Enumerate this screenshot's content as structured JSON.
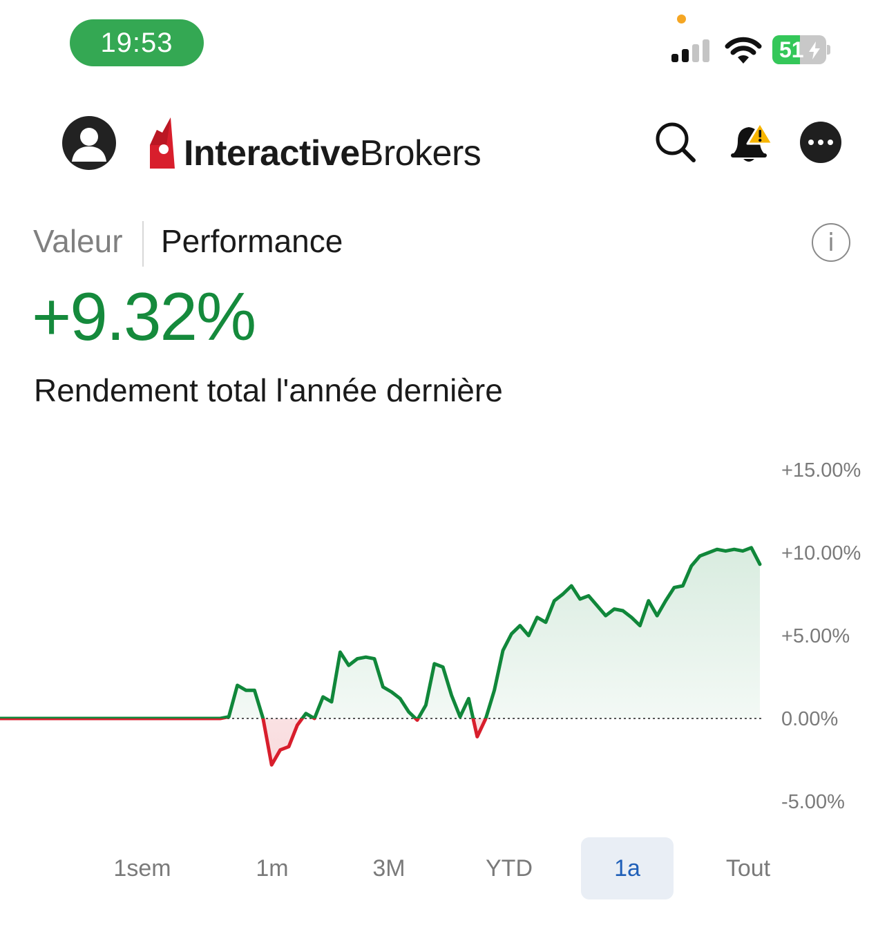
{
  "status_bar": {
    "time": "19:53",
    "battery_text": "51",
    "battery_level": 0.51,
    "colors": {
      "time_pill": "#34a853",
      "battery": "#34c759",
      "privacy_dot": "#f5a623"
    }
  },
  "header": {
    "logo_bold": "Interactive",
    "logo_light": "Brokers",
    "icons": [
      "avatar-icon",
      "search-icon",
      "bell-alert-icon",
      "more-icon"
    ]
  },
  "tabs": {
    "valeur": "Valeur",
    "performance": "Performance",
    "active": "Performance",
    "info": "i"
  },
  "summary": {
    "value": "+9.32%",
    "caption": "Rendement total l'année dernière",
    "color": "#158a3c"
  },
  "chart_data": {
    "type": "line",
    "title": "",
    "ylabel": "",
    "xlabel": "",
    "y_tick_labels": [
      "+15.00%",
      "+10.00%",
      "+5.00%",
      "0.00%",
      "-5.00%"
    ],
    "y_ticks": [
      15,
      10,
      5,
      0,
      -5
    ],
    "ylim": [
      -5,
      15
    ],
    "baseline": 0,
    "colors": {
      "positive": "#10873a",
      "negative": "#d81e2c"
    },
    "series": [
      {
        "values": [
          0,
          0,
          0,
          0,
          0,
          0,
          0,
          0,
          0,
          0,
          0,
          0,
          0,
          0.1,
          2.0,
          1.7,
          1.7,
          0,
          -2.8,
          -1.9,
          -1.7,
          -0.4,
          0.3,
          0,
          1.3,
          1.0,
          4.0,
          3.2,
          3.6,
          3.7,
          3.6,
          1.9,
          1.6,
          1.2,
          0.4,
          -0.1,
          0.8,
          3.3,
          3.1,
          1.4,
          0.1,
          1.2,
          -1.1,
          0,
          1.7,
          4.1,
          5.1,
          5.6,
          5.0,
          6.1,
          5.8,
          7.1,
          7.5,
          8.0,
          7.2,
          7.4,
          6.8,
          6.2,
          6.6,
          6.5,
          6.1,
          5.6,
          7.1,
          6.2,
          7.1,
          7.9,
          8.0,
          9.2,
          9.8,
          10.0,
          10.2,
          10.1,
          10.2,
          10.1,
          10.3,
          9.3
        ]
      }
    ]
  },
  "ranges": [
    "1sem",
    "1m",
    "3M",
    "YTD",
    "1a",
    "Tout"
  ],
  "active_range": "1a"
}
